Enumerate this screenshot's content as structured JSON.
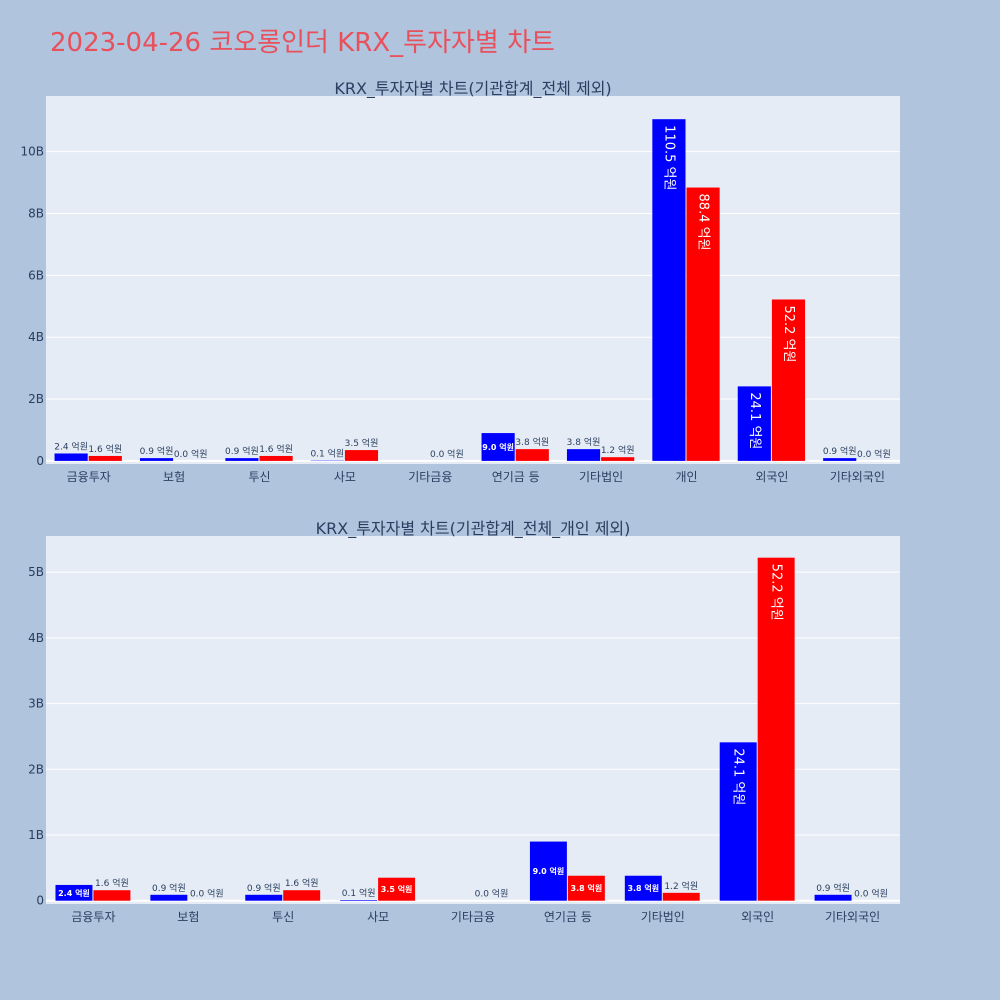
{
  "page": {
    "title": "2023-04-26 코오롱인더 KRX_투자자별 차트",
    "background": "#b0c4de",
    "plot_background": "#e5ecf6",
    "title_color": "#e8505b"
  },
  "chart_data": [
    {
      "type": "bar",
      "title": "KRX_투자자별 차트(기관합계_전체 제외)",
      "categories": [
        "금융투자",
        "보험",
        "투신",
        "사모",
        "기타금융",
        "연기금 등",
        "기타법인",
        "개인",
        "외국인",
        "기타외국인"
      ],
      "series": [
        {
          "color": "#0000ff",
          "values": [
            0.24,
            0.09,
            0.09,
            0.01,
            0.0,
            0.9,
            0.38,
            11.05,
            2.41,
            0.09
          ],
          "labels": [
            "2.4 억원",
            "0.9 억원",
            "0.9 억원",
            "0.1 억원",
            "",
            "9.0 억원",
            "3.8 억원",
            "110.5 억원",
            "24.1 억원",
            "0.9 억원"
          ]
        },
        {
          "color": "#ff0000",
          "values": [
            0.16,
            0.0,
            0.16,
            0.35,
            0.0,
            0.38,
            0.12,
            8.84,
            5.22,
            0.0
          ],
          "labels": [
            "1.6 억원",
            "0.0 억원",
            "1.6 억원",
            "3.5 억원",
            "0.0 억원",
            "3.8 억원",
            "1.2 억원",
            "88.4 억원",
            "52.2 억원",
            "0.0 억원"
          ]
        }
      ],
      "ylim": [
        -0.1,
        11.8
      ],
      "yticks": [
        0,
        2,
        4,
        6,
        8,
        10
      ],
      "ytick_labels": [
        "0",
        "2B",
        "4B",
        "6B",
        "8B",
        "10B"
      ],
      "grid": true
    },
    {
      "type": "bar",
      "title": "KRX_투자자별 차트(기관합계_전체_개인 제외)",
      "categories": [
        "금융투자",
        "보험",
        "투신",
        "사모",
        "기타금융",
        "연기금 등",
        "기타법인",
        "외국인",
        "기타외국인"
      ],
      "series": [
        {
          "color": "#0000ff",
          "values": [
            0.24,
            0.09,
            0.09,
            0.01,
            0.0,
            0.9,
            0.38,
            2.41,
            0.09
          ],
          "labels": [
            "2.4 억원",
            "0.9 억원",
            "0.9 억원",
            "0.1 억원",
            "",
            "9.0 억원",
            "3.8 억원",
            "24.1 억원",
            "0.9 억원"
          ]
        },
        {
          "color": "#ff0000",
          "values": [
            0.16,
            0.0,
            0.16,
            0.35,
            0.0,
            0.38,
            0.12,
            5.22,
            0.0
          ],
          "labels": [
            "1.6 억원",
            "0.0 억원",
            "1.6 억원",
            "3.5 억원",
            "0.0 억원",
            "3.8 억원",
            "1.2 억원",
            "52.2 억원",
            "0.0 억원"
          ]
        }
      ],
      "ylim": [
        -0.05,
        5.55
      ],
      "yticks": [
        0,
        1,
        2,
        3,
        4,
        5
      ],
      "ytick_labels": [
        "0",
        "1B",
        "2B",
        "3B",
        "4B",
        "5B"
      ],
      "grid": true
    }
  ]
}
